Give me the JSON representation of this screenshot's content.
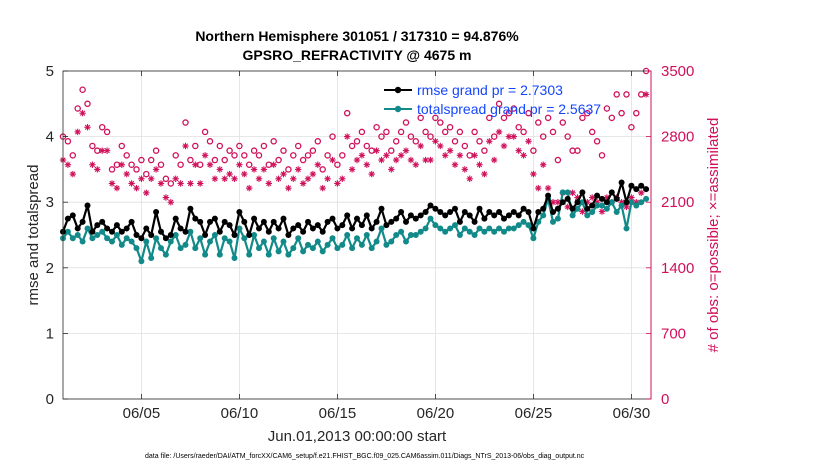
{
  "chart_data": {
    "type": "line",
    "title_line1": "Northern Hemisphere 301051 / 317310 = 94.876%",
    "title_line2": "GPSRO_REFRACTIVITY @ 4675 m",
    "xlabel": "Jun.01,2013 00:00:00 start",
    "ylabel_left": "rmse and totalspread",
    "ylabel_right": "# of obs: o=possible; ×=assimilated",
    "footer": "data file: /Users/raeder/DAI/ATM_forcXX/CAM6_setup/f.e21.FHIST_BGC.f09_025.CAM6assim.011/Diags_NTrS_2013-06/obs_diag_output.nc",
    "x_unit": "day of June 2013",
    "xlim": [
      1.0,
      31.0
    ],
    "ylim_left": [
      0,
      5
    ],
    "ylim_right": [
      0,
      3500
    ],
    "x_ticks": [
      5,
      10,
      15,
      20,
      25,
      30
    ],
    "x_tick_labels": [
      "06/05",
      "06/10",
      "06/15",
      "06/20",
      "06/25",
      "06/30"
    ],
    "y_ticks_left": [
      0,
      1,
      2,
      3,
      4,
      5
    ],
    "y_tick_labels_left": [
      "0",
      "1",
      "2",
      "3",
      "4",
      "5"
    ],
    "y_ticks_right": [
      0,
      700,
      1400,
      2100,
      2800,
      3500
    ],
    "y_tick_labels_right": [
      "0",
      "700",
      "1400",
      "2100",
      "2800",
      "3500"
    ],
    "grid": true,
    "legend": {
      "placement": "top-right",
      "entries": [
        "rmse grand pr = 2.7303",
        "totalspread grand pr = 2.5637"
      ]
    },
    "colors": {
      "rmse": "#000000",
      "totalspread": "#128a8a",
      "obs_count": "#d0105a",
      "legend_text": "#1446ff",
      "grid": "#dfdfdf"
    },
    "series": [
      {
        "name": "rmse",
        "axis": "left",
        "x": [
          1.0,
          1.25,
          1.5,
          1.75,
          2.0,
          2.25,
          2.5,
          2.75,
          3.0,
          3.25,
          3.5,
          3.75,
          4.0,
          4.25,
          4.5,
          4.75,
          5.0,
          5.25,
          5.5,
          5.75,
          6.0,
          6.25,
          6.5,
          6.75,
          7.0,
          7.25,
          7.5,
          7.75,
          8.0,
          8.25,
          8.5,
          8.75,
          9.0,
          9.25,
          9.5,
          9.75,
          10.0,
          10.25,
          10.5,
          10.75,
          11.0,
          11.25,
          11.5,
          11.75,
          12.0,
          12.25,
          12.5,
          12.75,
          13.0,
          13.25,
          13.5,
          13.75,
          14.0,
          14.25,
          14.5,
          14.75,
          15.0,
          15.25,
          15.5,
          15.75,
          16.0,
          16.25,
          16.5,
          16.75,
          17.0,
          17.25,
          17.5,
          17.75,
          18.0,
          18.25,
          18.5,
          18.75,
          19.0,
          19.25,
          19.5,
          19.75,
          20.0,
          20.25,
          20.5,
          20.75,
          21.0,
          21.25,
          21.5,
          21.75,
          22.0,
          22.25,
          22.5,
          22.75,
          23.0,
          23.25,
          23.5,
          23.75,
          24.0,
          24.25,
          24.5,
          24.75,
          25.0,
          25.25,
          25.5,
          25.75,
          26.0,
          26.25,
          26.5,
          26.75,
          27.0,
          27.25,
          27.5,
          27.75,
          28.0,
          28.25,
          28.5,
          28.75,
          29.0,
          29.25,
          29.5,
          29.75,
          30.0,
          30.25,
          30.5,
          30.75
        ],
        "values": [
          2.55,
          2.75,
          2.8,
          2.6,
          2.7,
          2.95,
          2.55,
          2.65,
          2.7,
          2.6,
          2.55,
          2.65,
          2.55,
          2.6,
          2.7,
          2.5,
          2.45,
          2.6,
          2.5,
          2.85,
          2.55,
          2.45,
          2.5,
          2.75,
          2.6,
          2.55,
          2.9,
          2.75,
          2.7,
          2.5,
          2.7,
          2.75,
          2.55,
          2.7,
          2.65,
          2.5,
          2.85,
          2.7,
          2.5,
          2.75,
          2.6,
          2.7,
          2.55,
          2.7,
          2.6,
          2.75,
          2.5,
          2.6,
          2.65,
          2.55,
          2.7,
          2.6,
          2.65,
          2.55,
          2.7,
          2.75,
          2.6,
          2.65,
          2.8,
          2.6,
          2.75,
          2.65,
          2.8,
          2.6,
          2.7,
          2.9,
          2.65,
          2.7,
          2.75,
          2.85,
          2.7,
          2.8,
          2.75,
          2.8,
          2.85,
          2.95,
          2.9,
          2.85,
          2.8,
          2.85,
          2.9,
          2.7,
          2.85,
          2.8,
          2.7,
          2.9,
          2.75,
          2.85,
          2.8,
          2.85,
          2.75,
          2.8,
          2.85,
          2.8,
          2.9,
          2.85,
          2.6,
          2.85,
          2.9,
          3.1,
          2.85,
          2.9,
          3.0,
          3.05,
          2.9,
          3.0,
          3.15,
          2.9,
          2.95,
          3.1,
          3.05,
          3.0,
          3.15,
          3.05,
          3.3,
          3.0,
          3.25,
          3.2,
          3.25,
          3.2
        ]
      },
      {
        "name": "totalspread",
        "axis": "left",
        "x": [
          1.0,
          1.25,
          1.5,
          1.75,
          2.0,
          2.25,
          2.5,
          2.75,
          3.0,
          3.25,
          3.5,
          3.75,
          4.0,
          4.25,
          4.5,
          4.75,
          5.0,
          5.25,
          5.5,
          5.75,
          6.0,
          6.25,
          6.5,
          6.75,
          7.0,
          7.25,
          7.5,
          7.75,
          8.0,
          8.25,
          8.5,
          8.75,
          9.0,
          9.25,
          9.5,
          9.75,
          10.0,
          10.25,
          10.5,
          10.75,
          11.0,
          11.25,
          11.5,
          11.75,
          12.0,
          12.25,
          12.5,
          12.75,
          13.0,
          13.25,
          13.5,
          13.75,
          14.0,
          14.25,
          14.5,
          14.75,
          15.0,
          15.25,
          15.5,
          15.75,
          16.0,
          16.25,
          16.5,
          16.75,
          17.0,
          17.25,
          17.5,
          17.75,
          18.0,
          18.25,
          18.5,
          18.75,
          19.0,
          19.25,
          19.5,
          19.75,
          20.0,
          20.25,
          20.5,
          20.75,
          21.0,
          21.25,
          21.5,
          21.75,
          22.0,
          22.25,
          22.5,
          22.75,
          23.0,
          23.25,
          23.5,
          23.75,
          24.0,
          24.25,
          24.5,
          24.75,
          25.0,
          25.25,
          25.5,
          25.75,
          26.0,
          26.25,
          26.5,
          26.75,
          27.0,
          27.25,
          27.5,
          27.75,
          28.0,
          28.25,
          28.5,
          28.75,
          29.0,
          29.25,
          29.5,
          29.75,
          30.0,
          30.25,
          30.5,
          30.75
        ],
        "values": [
          2.45,
          2.55,
          2.45,
          2.5,
          2.4,
          2.6,
          2.45,
          2.5,
          2.55,
          2.45,
          2.4,
          2.5,
          2.35,
          2.45,
          2.4,
          2.3,
          2.1,
          2.4,
          2.15,
          2.45,
          2.3,
          2.2,
          2.4,
          2.5,
          2.3,
          2.35,
          2.55,
          2.3,
          2.45,
          2.2,
          2.4,
          2.5,
          2.2,
          2.45,
          2.4,
          2.15,
          2.6,
          2.45,
          2.2,
          2.5,
          2.3,
          2.4,
          2.2,
          2.45,
          2.25,
          2.4,
          2.2,
          2.3,
          2.45,
          2.25,
          2.35,
          2.3,
          2.4,
          2.25,
          2.35,
          2.45,
          2.3,
          2.35,
          2.5,
          2.3,
          2.45,
          2.35,
          2.5,
          2.3,
          2.4,
          2.6,
          2.35,
          2.4,
          2.5,
          2.55,
          2.4,
          2.5,
          2.5,
          2.55,
          2.6,
          2.75,
          2.65,
          2.6,
          2.55,
          2.6,
          2.65,
          2.5,
          2.6,
          2.55,
          2.5,
          2.6,
          2.55,
          2.6,
          2.55,
          2.6,
          2.55,
          2.6,
          2.6,
          2.65,
          2.7,
          2.65,
          2.45,
          2.7,
          2.8,
          3.05,
          2.7,
          2.75,
          3.15,
          3.15,
          2.8,
          2.9,
          3.0,
          2.8,
          2.85,
          2.95,
          2.95,
          2.9,
          3.0,
          2.85,
          2.95,
          2.6,
          3.0,
          2.95,
          3.0,
          3.05
        ]
      },
      {
        "name": "obs possible",
        "axis": "right",
        "marker": "circle",
        "x": [
          1.0,
          1.25,
          1.5,
          1.75,
          2.0,
          2.25,
          2.5,
          2.75,
          3.0,
          3.25,
          3.5,
          3.75,
          4.0,
          4.25,
          4.5,
          4.75,
          5.0,
          5.25,
          5.5,
          5.75,
          6.0,
          6.25,
          6.5,
          6.75,
          7.0,
          7.25,
          7.5,
          7.75,
          8.0,
          8.25,
          8.5,
          8.75,
          9.0,
          9.25,
          9.5,
          9.75,
          10.0,
          10.25,
          10.5,
          10.75,
          11.0,
          11.25,
          11.5,
          11.75,
          12.0,
          12.25,
          12.5,
          12.75,
          13.0,
          13.25,
          13.5,
          13.75,
          14.0,
          14.25,
          14.5,
          14.75,
          15.0,
          15.25,
          15.5,
          15.75,
          16.0,
          16.25,
          16.5,
          16.75,
          17.0,
          17.25,
          17.5,
          17.75,
          18.0,
          18.25,
          18.5,
          18.75,
          19.0,
          19.25,
          19.5,
          19.75,
          20.0,
          20.25,
          20.5,
          20.75,
          21.0,
          21.25,
          21.5,
          21.75,
          22.0,
          22.25,
          22.5,
          22.75,
          23.0,
          23.25,
          23.5,
          23.75,
          24.0,
          24.25,
          24.5,
          24.75,
          25.0,
          25.25,
          25.5,
          25.75,
          26.0,
          26.25,
          26.5,
          26.75,
          27.0,
          27.25,
          27.5,
          27.75,
          28.0,
          28.25,
          28.5,
          28.75,
          29.0,
          29.25,
          29.5,
          29.75,
          30.0,
          30.25,
          30.5,
          30.75
        ],
        "values": [
          2800,
          2750,
          2600,
          3100,
          3300,
          3150,
          2700,
          2650,
          2900,
          2850,
          2450,
          2500,
          2700,
          2600,
          2500,
          2450,
          2550,
          2400,
          2550,
          2650,
          2500,
          2350,
          2300,
          2600,
          2500,
          2950,
          2550,
          2700,
          2500,
          2850,
          2750,
          2550,
          2700,
          2550,
          2650,
          2600,
          2700,
          2600,
          2500,
          2650,
          2600,
          2700,
          2500,
          2750,
          2550,
          2650,
          2450,
          2600,
          2700,
          2550,
          2600,
          2650,
          2750,
          2450,
          2600,
          2800,
          2500,
          2600,
          3050,
          2700,
          2750,
          2850,
          2700,
          2650,
          2900,
          2800,
          2850,
          2650,
          2750,
          2850,
          2950,
          2800,
          2750,
          3000,
          2850,
          2800,
          3000,
          2950,
          2850,
          2900,
          2750,
          2850,
          2700,
          2600,
          2850,
          2750,
          2650,
          3000,
          2800,
          3150,
          3000,
          3050,
          3100,
          2900,
          2850,
          3050,
          2650,
          2950,
          2800,
          3000,
          2850,
          2550,
          2950,
          2800,
          2650,
          2650,
          3000,
          3050,
          2850,
          2750,
          2600,
          3100,
          3000,
          3250,
          3050,
          3250,
          2900,
          3050,
          3250,
          3500
        ]
      },
      {
        "name": "obs assimilated",
        "axis": "right",
        "marker": "asterisk",
        "x": [
          1.0,
          1.25,
          1.5,
          1.75,
          2.0,
          2.25,
          2.5,
          2.75,
          3.0,
          3.25,
          3.5,
          3.75,
          4.0,
          4.25,
          4.5,
          4.75,
          5.0,
          5.25,
          5.5,
          5.75,
          6.0,
          6.25,
          6.5,
          6.75,
          7.0,
          7.25,
          7.5,
          7.75,
          8.0,
          8.25,
          8.5,
          8.75,
          9.0,
          9.25,
          9.5,
          9.75,
          10.0,
          10.25,
          10.5,
          10.75,
          11.0,
          11.25,
          11.5,
          11.75,
          12.0,
          12.25,
          12.5,
          12.75,
          13.0,
          13.25,
          13.5,
          13.75,
          14.0,
          14.25,
          14.5,
          14.75,
          15.0,
          15.25,
          15.5,
          15.75,
          16.0,
          16.25,
          16.5,
          16.75,
          17.0,
          17.25,
          17.5,
          17.75,
          18.0,
          18.25,
          18.5,
          18.75,
          19.0,
          19.25,
          19.5,
          19.75,
          20.0,
          20.25,
          20.5,
          20.75,
          21.0,
          21.25,
          21.5,
          21.75,
          22.0,
          22.25,
          22.5,
          22.75,
          23.0,
          23.25,
          23.5,
          23.75,
          24.0,
          24.25,
          24.5,
          24.75,
          25.0,
          25.25,
          25.5,
          25.75,
          26.0,
          26.25,
          26.5,
          26.75,
          27.0,
          27.25,
          27.5,
          27.75,
          28.0,
          28.25,
          28.5,
          28.75,
          29.0,
          29.25,
          29.5,
          29.75,
          30.0,
          30.25,
          30.5,
          30.75
        ],
        "values": [
          2550,
          2500,
          2400,
          2850,
          3050,
          2900,
          2500,
          2450,
          2650,
          2650,
          2300,
          2250,
          2500,
          2400,
          2300,
          2250,
          2350,
          2200,
          2350,
          2450,
          2300,
          2150,
          2100,
          2350,
          2300,
          2700,
          2300,
          2500,
          2300,
          2600,
          2500,
          2350,
          2450,
          2350,
          2400,
          2350,
          2500,
          2400,
          2250,
          2450,
          2350,
          2450,
          2300,
          2500,
          2350,
          2400,
          2250,
          2350,
          2450,
          2300,
          2350,
          2400,
          2500,
          2250,
          2350,
          2550,
          2300,
          2350,
          2800,
          2450,
          2550,
          2600,
          2500,
          2400,
          2650,
          2550,
          2600,
          2450,
          2550,
          2600,
          2650,
          2550,
          2500,
          2700,
          2550,
          2550,
          2750,
          2700,
          2600,
          2650,
          2500,
          2600,
          2450,
          2350,
          2600,
          2500,
          2400,
          2750,
          2550,
          2850,
          2700,
          2800,
          2800,
          2650,
          2600,
          2750,
          2400,
          2250,
          2500,
          2250,
          2100,
          2100,
          2200,
          2050,
          2200,
          2150,
          2000,
          2100,
          2150,
          2100,
          2000,
          2150,
          2100,
          2150,
          2100,
          2050,
          2150,
          2100,
          2200,
          3250
        ]
      }
    ]
  }
}
